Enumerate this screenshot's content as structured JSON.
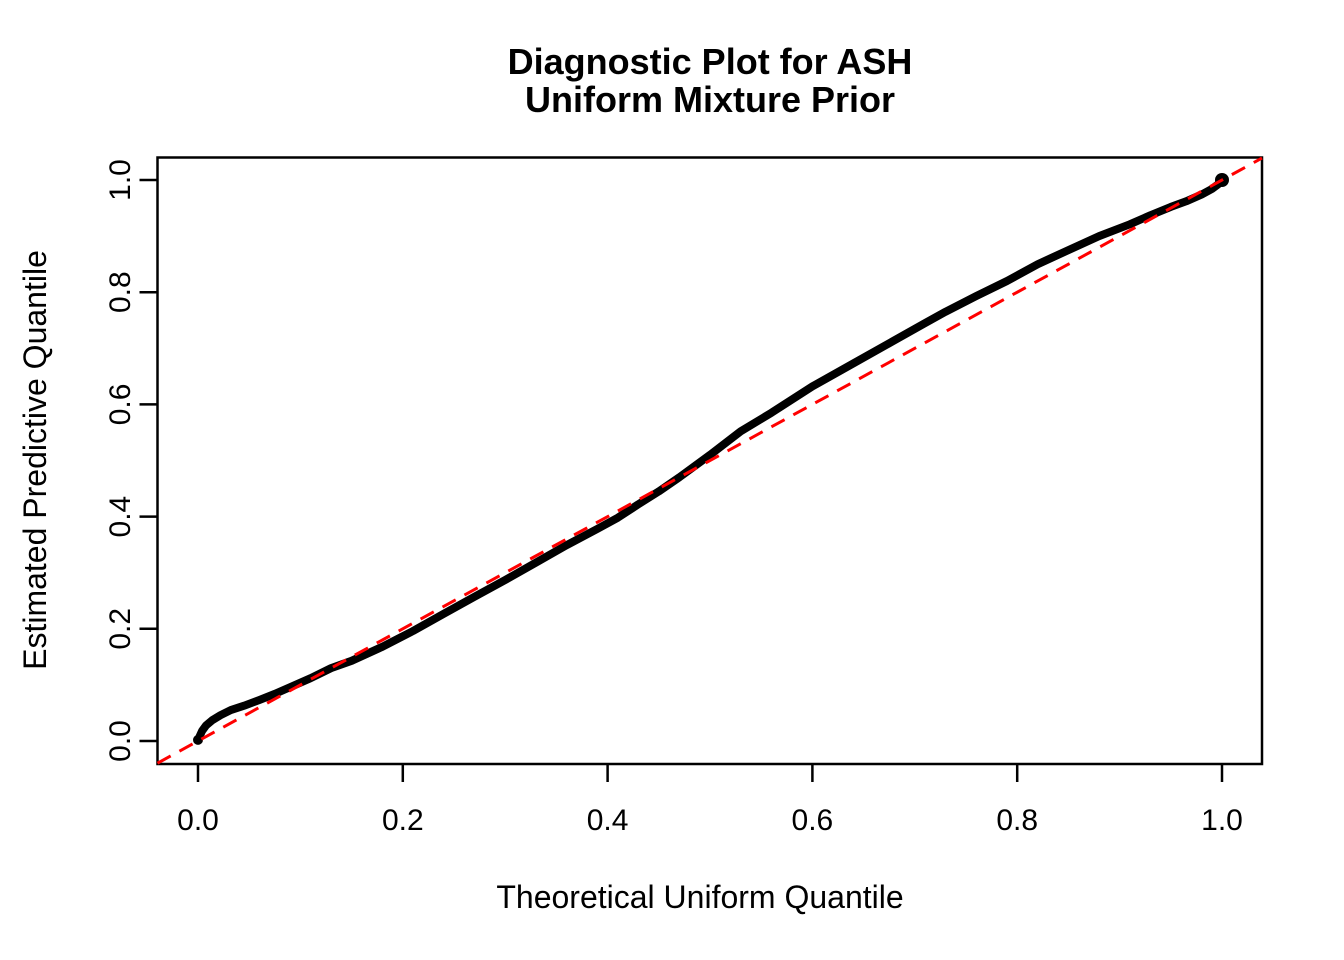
{
  "chart_data": {
    "type": "line",
    "title_line1": "Diagnostic Plot for ASH",
    "title_line2": "Uniform Mixture Prior",
    "xlabel": "Theoretical Uniform Quantile",
    "ylabel": "Estimated Predictive Quantile",
    "xlim": [
      0,
      1
    ],
    "ylim": [
      0,
      1
    ],
    "grid": false,
    "legend": null,
    "x_ticks": [
      {
        "value": 0.0,
        "label": "0.0"
      },
      {
        "value": 0.2,
        "label": "0.2"
      },
      {
        "value": 0.4,
        "label": "0.4"
      },
      {
        "value": 0.6,
        "label": "0.6"
      },
      {
        "value": 0.8,
        "label": "0.8"
      },
      {
        "value": 1.0,
        "label": "1.0"
      }
    ],
    "y_ticks": [
      {
        "value": 0.0,
        "label": "0.0"
      },
      {
        "value": 0.2,
        "label": "0.2"
      },
      {
        "value": 0.4,
        "label": "0.4"
      },
      {
        "value": 0.6,
        "label": "0.6"
      },
      {
        "value": 0.8,
        "label": "0.8"
      },
      {
        "value": 1.0,
        "label": "1.0"
      }
    ],
    "series": [
      {
        "name": "estimated-predictive-quantiles",
        "type": "line",
        "color": "#000000",
        "points": [
          [
            0.0,
            0.002
          ],
          [
            0.004,
            0.018
          ],
          [
            0.008,
            0.028
          ],
          [
            0.014,
            0.037
          ],
          [
            0.022,
            0.046
          ],
          [
            0.032,
            0.055
          ],
          [
            0.045,
            0.063
          ],
          [
            0.06,
            0.073
          ],
          [
            0.075,
            0.084
          ],
          [
            0.09,
            0.096
          ],
          [
            0.11,
            0.112
          ],
          [
            0.13,
            0.13
          ],
          [
            0.15,
            0.143
          ],
          [
            0.18,
            0.168
          ],
          [
            0.21,
            0.196
          ],
          [
            0.24,
            0.227
          ],
          [
            0.27,
            0.257
          ],
          [
            0.3,
            0.287
          ],
          [
            0.33,
            0.318
          ],
          [
            0.36,
            0.349
          ],
          [
            0.39,
            0.378
          ],
          [
            0.41,
            0.398
          ],
          [
            0.43,
            0.422
          ],
          [
            0.45,
            0.445
          ],
          [
            0.47,
            0.47
          ],
          [
            0.5,
            0.51
          ],
          [
            0.53,
            0.552
          ],
          [
            0.56,
            0.585
          ],
          [
            0.6,
            0.632
          ],
          [
            0.64,
            0.673
          ],
          [
            0.68,
            0.714
          ],
          [
            0.71,
            0.745
          ],
          [
            0.73,
            0.765
          ],
          [
            0.76,
            0.793
          ],
          [
            0.79,
            0.82
          ],
          [
            0.82,
            0.85
          ],
          [
            0.85,
            0.875
          ],
          [
            0.88,
            0.9
          ],
          [
            0.91,
            0.921
          ],
          [
            0.93,
            0.937
          ],
          [
            0.95,
            0.952
          ],
          [
            0.965,
            0.962
          ],
          [
            0.98,
            0.974
          ],
          [
            0.99,
            0.984
          ],
          [
            0.996,
            0.992
          ],
          [
            1.0,
            1.0
          ]
        ]
      },
      {
        "name": "identity-reference-line",
        "type": "line",
        "style": "dashed",
        "color": "#FF0000",
        "from": [
          0,
          0
        ],
        "to": [
          1,
          1
        ]
      }
    ]
  }
}
